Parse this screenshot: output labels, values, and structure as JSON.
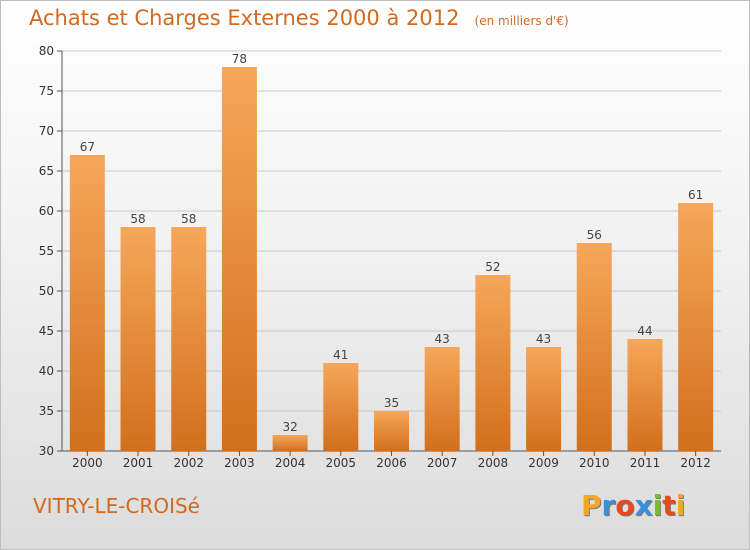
{
  "title": "Achats et Charges Externes 2000 à 2012",
  "subtitle": "(en milliers d'€)",
  "footer": {
    "commune": "VITRY-LE-CROISé"
  },
  "brand": {
    "text": "Proxiti",
    "letters": [
      "P",
      "r",
      "o",
      "x",
      "i",
      "t",
      "i"
    ],
    "colors": [
      "#f5a623",
      "#3a8fd8",
      "#e8491d",
      "#3a8fd8",
      "#7cbb2f",
      "#e8491d",
      "#f5a623"
    ]
  },
  "colors": {
    "bar_light": "#f6a75a",
    "bar_dark": "#d26f1c",
    "accent": "#d2691e",
    "grid": "#c8c8c8"
  },
  "chart_data": {
    "type": "bar",
    "title": "Achats et Charges Externes 2000 à 2012",
    "xlabel": "",
    "ylabel": "",
    "categories": [
      "2000",
      "2001",
      "2002",
      "2003",
      "2004",
      "2005",
      "2006",
      "2007",
      "2008",
      "2009",
      "2010",
      "2011",
      "2012"
    ],
    "values": [
      67,
      58,
      58,
      78,
      32,
      41,
      35,
      43,
      52,
      43,
      56,
      44,
      61
    ],
    "data_labels": [
      "67",
      "58",
      "58",
      "78",
      "32",
      "41",
      "35",
      "43",
      "52",
      "43",
      "56",
      "44",
      "61"
    ],
    "ylim": [
      30,
      80
    ],
    "yticks": [
      30,
      35,
      40,
      45,
      50,
      55,
      60,
      65,
      70,
      75,
      80
    ],
    "ytick_labels": [
      "30",
      "35",
      "40",
      "45",
      "50",
      "55",
      "60",
      "65",
      "70",
      "75",
      "80"
    ],
    "grid": true
  }
}
